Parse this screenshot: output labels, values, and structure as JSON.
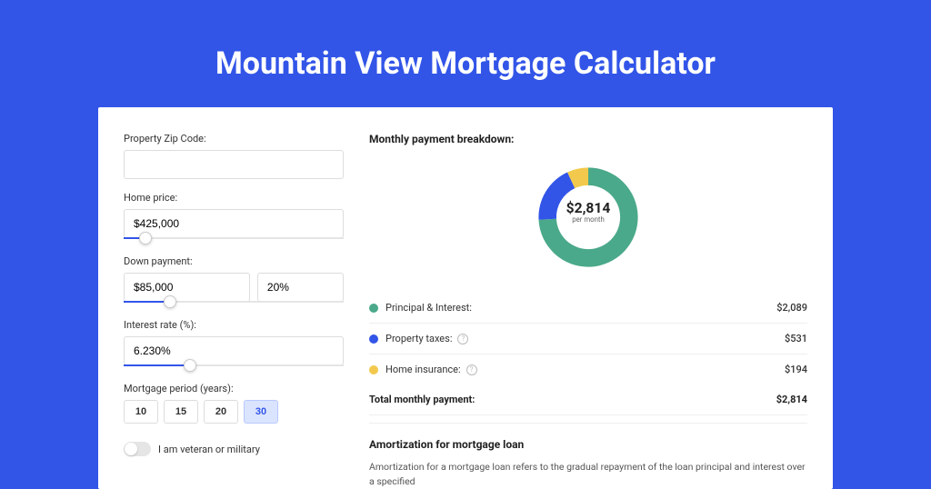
{
  "page": {
    "title": "Mountain View Mortgage Calculator",
    "background_color": "#3255e8"
  },
  "form": {
    "zip": {
      "label": "Property Zip Code:",
      "value": ""
    },
    "home_price": {
      "label": "Home price:",
      "value": "$425,000",
      "slider_pct": 10
    },
    "down_payment": {
      "label": "Down payment:",
      "amount": "$85,000",
      "percent": "20%",
      "slider_pct": 21
    },
    "interest_rate": {
      "label": "Interest rate (%):",
      "value": "6.230%",
      "slider_pct": 30
    },
    "period": {
      "label": "Mortgage period (years):",
      "options": [
        "10",
        "15",
        "20",
        "30"
      ],
      "selected": "30"
    },
    "veteran_toggle": {
      "label": "I am veteran or military",
      "checked": false
    }
  },
  "breakdown": {
    "title": "Monthly payment breakdown:",
    "donut": {
      "center_value": "$2,814",
      "center_sub": "per month",
      "slices": [
        {
          "key": "principal_interest",
          "pct": 74.2,
          "color": "#4aa98a"
        },
        {
          "key": "property_taxes",
          "pct": 18.9,
          "color": "#3255e8"
        },
        {
          "key": "home_insurance",
          "pct": 6.9,
          "color": "#f2c94c"
        }
      ]
    },
    "rows": [
      {
        "key": "principal_interest",
        "label": "Principal & Interest:",
        "value": "$2,089",
        "color": "#4aa98a",
        "has_info": false
      },
      {
        "key": "property_taxes",
        "label": "Property taxes:",
        "value": "$531",
        "color": "#3255e8",
        "has_info": true
      },
      {
        "key": "home_insurance",
        "label": "Home insurance:",
        "value": "$194",
        "color": "#f2c94c",
        "has_info": true
      }
    ],
    "total_label": "Total monthly payment:",
    "total_value": "$2,814"
  },
  "amortization": {
    "title": "Amortization for mortgage loan",
    "text": "Amortization for a mortgage loan refers to the gradual repayment of the loan principal and interest over a specified"
  }
}
